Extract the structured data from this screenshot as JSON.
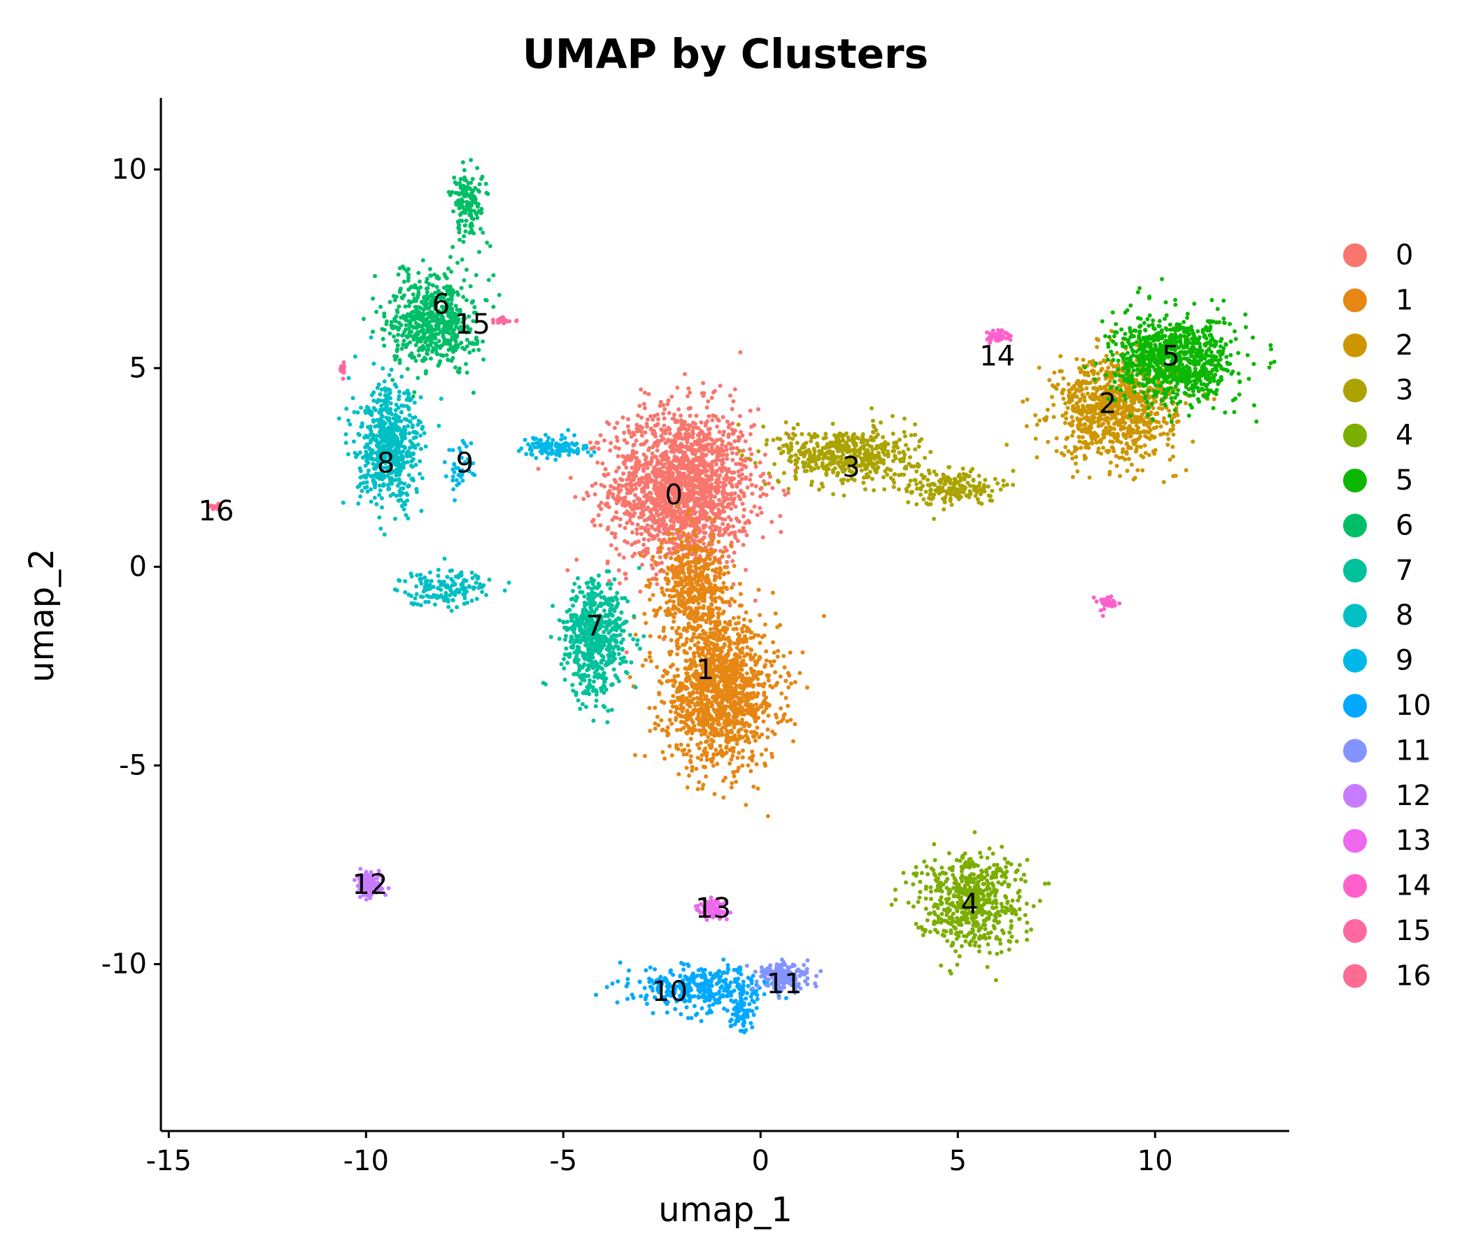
{
  "chart_data": {
    "type": "scatter",
    "title": "UMAP by Clusters",
    "xlabel": "umap_1",
    "ylabel": "umap_2",
    "xlim": [
      -15.2,
      13.4
    ],
    "ylim": [
      -14.2,
      11.8
    ],
    "xticks": [
      -15,
      -10,
      -5,
      0,
      5,
      10
    ],
    "yticks": [
      -10,
      -5,
      0,
      5,
      10
    ],
    "xtick_labels": [
      "-15",
      "-10",
      "-5",
      "0",
      "5",
      "10"
    ],
    "ytick_labels": [
      "-10",
      "-5",
      "0",
      "5",
      "10"
    ],
    "grid": false,
    "legend_position": "right",
    "series": [
      {
        "name": "0",
        "color": "#F8766D",
        "label_at": [
          -2.2,
          1.8
        ],
        "regions": [
          [
            -2.0,
            2.0,
            2.0,
            2.2,
            1800
          ]
        ]
      },
      {
        "name": "1",
        "color": "#E68613",
        "label_at": [
          -1.4,
          -2.6
        ],
        "regions": [
          [
            -1.0,
            -3.2,
            1.6,
            2.0,
            1300
          ],
          [
            -1.7,
            -0.6,
            1.0,
            1.6,
            500
          ]
        ]
      },
      {
        "name": "2",
        "color": "#CD9600",
        "label_at": [
          8.8,
          4.1
        ],
        "regions": [
          [
            9.0,
            4.0,
            1.7,
            1.4,
            900
          ]
        ]
      },
      {
        "name": "3",
        "color": "#ABA300",
        "label_at": [
          2.3,
          2.5
        ],
        "regions": [
          [
            2.2,
            2.8,
            1.9,
            0.8,
            500
          ],
          [
            4.8,
            2.0,
            1.3,
            0.5,
            200
          ]
        ]
      },
      {
        "name": "4",
        "color": "#7CAE00",
        "label_at": [
          5.3,
          -8.5
        ],
        "regions": [
          [
            5.3,
            -8.4,
            1.5,
            1.3,
            600
          ]
        ]
      },
      {
        "name": "5",
        "color": "#0CB702",
        "label_at": [
          10.4,
          5.3
        ],
        "regions": [
          [
            10.5,
            5.2,
            1.7,
            1.2,
            900
          ]
        ]
      },
      {
        "name": "6",
        "color": "#00BE67",
        "label_at": [
          -8.1,
          6.6
        ],
        "regions": [
          [
            -8.3,
            6.2,
            1.2,
            1.3,
            600
          ],
          [
            -7.4,
            9.2,
            0.5,
            1.0,
            150
          ]
        ]
      },
      {
        "name": "7",
        "color": "#00C19A",
        "label_at": [
          -4.2,
          -1.5
        ],
        "regions": [
          [
            -4.2,
            -1.8,
            0.9,
            1.6,
            600
          ]
        ]
      },
      {
        "name": "8",
        "color": "#00BFC4",
        "label_at": [
          -9.5,
          2.6
        ],
        "regions": [
          [
            -9.4,
            3.0,
            0.9,
            1.6,
            600
          ],
          [
            -8.0,
            -0.5,
            1.3,
            0.5,
            150
          ]
        ]
      },
      {
        "name": "9",
        "color": "#00B8E7",
        "label_at": [
          -7.5,
          2.6
        ],
        "regions": [
          [
            -5.2,
            3.0,
            0.9,
            0.3,
            120
          ],
          [
            -7.6,
            2.4,
            0.4,
            0.8,
            40
          ]
        ]
      },
      {
        "name": "10",
        "color": "#00A9FF",
        "label_at": [
          -2.3,
          -10.7
        ],
        "regions": [
          [
            -1.5,
            -10.6,
            1.9,
            0.6,
            350
          ],
          [
            -0.5,
            -11.2,
            0.3,
            0.6,
            80
          ]
        ]
      },
      {
        "name": "11",
        "color": "#8494FF",
        "label_at": [
          0.6,
          -10.5
        ],
        "regions": [
          [
            0.6,
            -10.3,
            0.7,
            0.4,
            180
          ]
        ]
      },
      {
        "name": "12",
        "color": "#C77CFF",
        "label_at": [
          -9.9,
          -8.0
        ],
        "regions": [
          [
            -9.9,
            -8.0,
            0.35,
            0.3,
            150
          ]
        ]
      },
      {
        "name": "13",
        "color": "#ED68ED",
        "label_at": [
          -1.2,
          -8.6
        ],
        "regions": [
          [
            -1.2,
            -8.6,
            0.4,
            0.3,
            80
          ]
        ]
      },
      {
        "name": "14",
        "color": "#FF61CC",
        "label_at": [
          6.0,
          5.3
        ],
        "regions": [
          [
            6.0,
            5.8,
            0.3,
            0.15,
            40
          ],
          [
            8.8,
            -0.9,
            0.25,
            0.2,
            30
          ]
        ]
      },
      {
        "name": "15",
        "color": "#FF68A1",
        "label_at": [
          -7.3,
          6.1
        ],
        "regions": [
          [
            -6.5,
            6.2,
            0.3,
            0.1,
            25
          ],
          [
            -10.6,
            5.0,
            0.1,
            0.15,
            15
          ]
        ]
      },
      {
        "name": "16",
        "color": "#FF6C91",
        "label_at": [
          -13.8,
          1.4
        ],
        "regions": [
          [
            -13.8,
            1.5,
            0.2,
            0.1,
            15
          ]
        ]
      }
    ]
  }
}
